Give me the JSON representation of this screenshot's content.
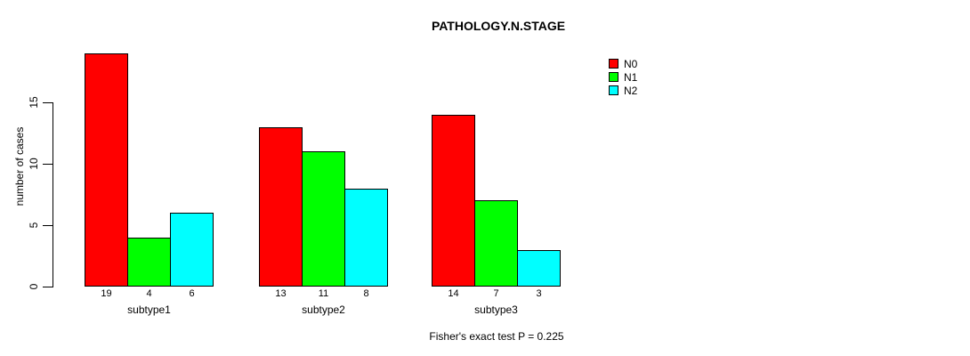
{
  "chart_data": {
    "type": "bar",
    "grouped": true,
    "title": "PATHOLOGY.N.STAGE",
    "xlabel": "",
    "ylabel": "number of cases",
    "categories": [
      "subtype1",
      "subtype2",
      "subtype3"
    ],
    "series": [
      {
        "name": "N0",
        "color": "#ff0000",
        "values": [
          19,
          13,
          14
        ]
      },
      {
        "name": "N1",
        "color": "#00ff00",
        "values": [
          4,
          11,
          7
        ]
      },
      {
        "name": "N2",
        "color": "#00ffff",
        "values": [
          6,
          8,
          3
        ]
      }
    ],
    "ylim": [
      0,
      19
    ],
    "yticks": [
      0,
      5,
      10,
      15
    ],
    "bar_value_labels": [
      [
        19,
        4,
        6
      ],
      [
        13,
        11,
        8
      ],
      [
        14,
        7,
        3
      ]
    ],
    "legend_position": "top-right",
    "grid": false,
    "annotation": "Fisher's exact test P = 0.225",
    "colors": {
      "background": "#ffffff",
      "axis": "#000000",
      "text": "#000000"
    }
  }
}
